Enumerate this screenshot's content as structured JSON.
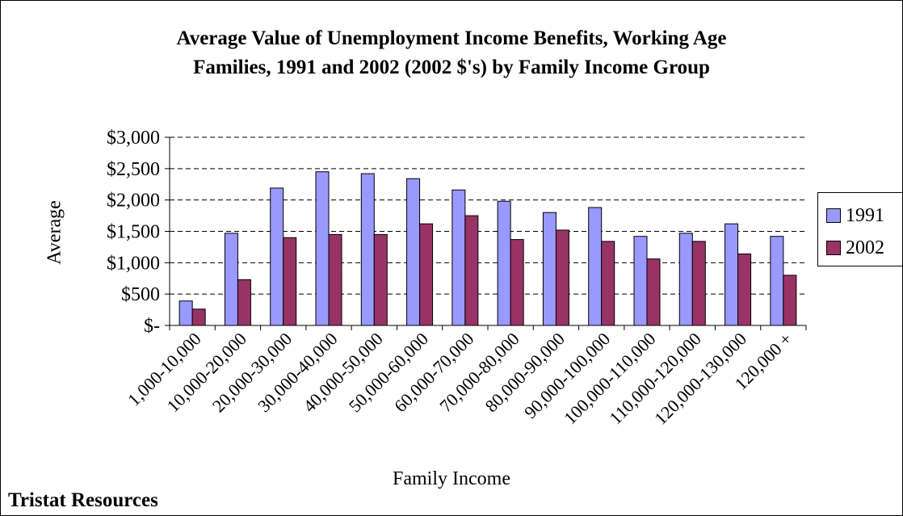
{
  "chart_data": {
    "type": "bar",
    "title_line1": "Average Value of Unemployment Income Benefits, Working Age",
    "title_line2": "Families, 1991 and 2002 (2002 $'s) by Family Income Group",
    "xlabel": "Family Income",
    "ylabel": "Average",
    "ylim": [
      0,
      3000
    ],
    "ytick_values": [
      0,
      500,
      1000,
      1500,
      2000,
      2500,
      3000
    ],
    "ytick_labels": [
      "$-",
      "$500",
      "$1,000",
      "$1,500",
      "$2,000",
      "$2,500",
      "$3,000"
    ],
    "grid": "dashed horizontal",
    "legend_position": "right",
    "categories": [
      "1,000-10,000",
      "10,000-20,000",
      "20,000-30,000",
      "30,000-40,000",
      "40,000-50,000",
      "50,000-60,000",
      "60,000-70,000",
      "70,000-80,000",
      "80,000-90,000",
      "90,000-100,000",
      "100,000-110,000",
      "110,000-120,000",
      "120,000-130,000",
      "120,000 +"
    ],
    "series": [
      {
        "name": "1991",
        "color": "#9999ff",
        "values": [
          390,
          1470,
          2190,
          2450,
          2420,
          2340,
          2160,
          1980,
          1800,
          1880,
          1420,
          1470,
          1620,
          1420
        ]
      },
      {
        "name": "2002",
        "color": "#993366",
        "values": [
          260,
          730,
          1400,
          1450,
          1450,
          1620,
          1750,
          1370,
          1520,
          1340,
          1060,
          1340,
          1140,
          800
        ]
      }
    ]
  },
  "source_text": "Tristat Resources"
}
